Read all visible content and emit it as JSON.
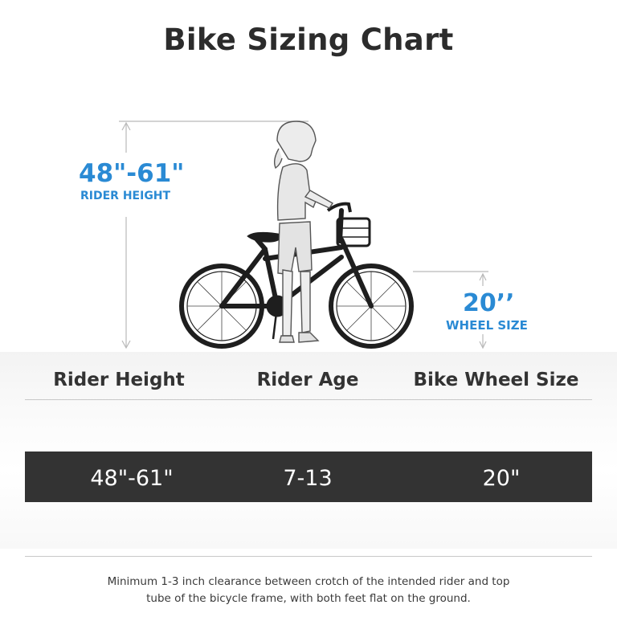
{
  "title": "Bike Sizing Chart",
  "measurements": {
    "rider_height_value": "48\"-61\"",
    "rider_height_label": "RIDER HEIGHT",
    "wheel_size_value": "20’’",
    "wheel_size_label": "WHEEL SIZE"
  },
  "table": {
    "headers": [
      "Rider Height",
      "Rider Age",
      "Bike Wheel Size"
    ],
    "rows": [
      [
        "48\"-61\"",
        "7-13",
        "20\""
      ]
    ]
  },
  "footnote": {
    "line1": "Minimum 1-3 inch clearance between crotch of the intended rider and top",
    "line2": "tube of the bicycle frame, with both feet flat on the ground."
  },
  "colors": {
    "accent": "#2a8ad4",
    "row_background": "#333333",
    "text": "#2e2e2e"
  }
}
